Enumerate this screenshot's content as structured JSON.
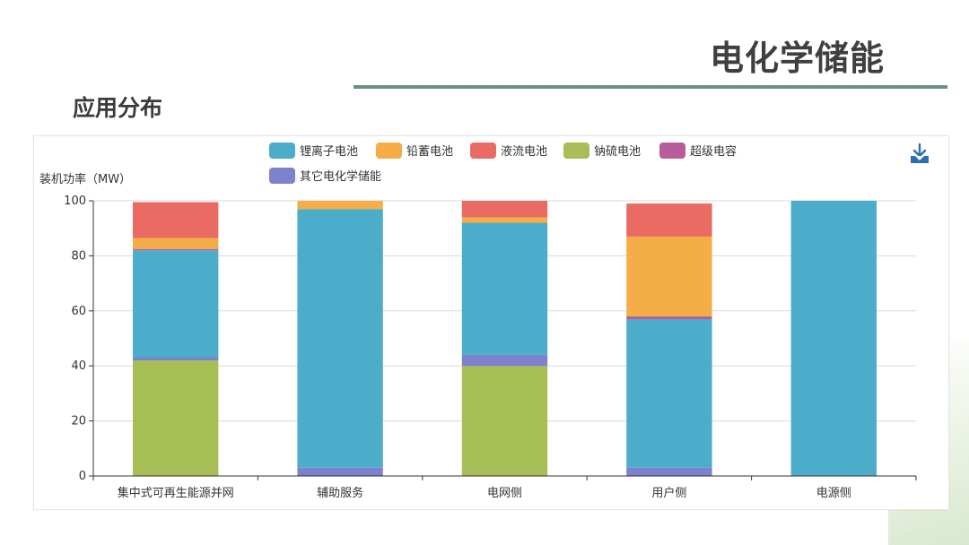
{
  "slide": {
    "title": "电化学储能",
    "section_title": "应用分布"
  },
  "toolbar": {
    "download_icon": "download-icon"
  },
  "chart_data": {
    "type": "bar",
    "stacked": true,
    "ylabel": "装机功率（MW）",
    "ylim": [
      0,
      100
    ],
    "yticks": [
      0,
      20,
      40,
      60,
      80,
      100
    ],
    "grid": true,
    "legend_position": "top-center",
    "categories": [
      "集中式可再生能源并网",
      "辅助服务",
      "电网侧",
      "用户侧",
      "电源侧"
    ],
    "series": [
      {
        "name": "锂离子电池",
        "color": "#4badc9",
        "values": [
          39,
          94,
          48,
          54,
          100
        ]
      },
      {
        "name": "铅蓄电池",
        "color": "#f5ad48",
        "values": [
          4,
          3,
          2,
          29,
          0
        ]
      },
      {
        "name": "液流电池",
        "color": "#ea6a64",
        "values": [
          13,
          0,
          6,
          12,
          0
        ]
      },
      {
        "name": "钠硫电池",
        "color": "#a7bd56",
        "values": [
          42,
          0,
          40,
          0,
          0
        ]
      },
      {
        "name": "超级电容",
        "color": "#b85d99",
        "values": [
          0.5,
          0,
          0,
          1,
          0
        ]
      },
      {
        "name": "其它电化学储能",
        "color": "#7d82cc",
        "values": [
          1,
          3,
          4,
          3,
          0
        ]
      }
    ],
    "stack_order": [
      "钠硫电池",
      "其它电化学储能",
      "锂离子电池",
      "超级电容",
      "铅蓄电池",
      "液流电池"
    ]
  }
}
